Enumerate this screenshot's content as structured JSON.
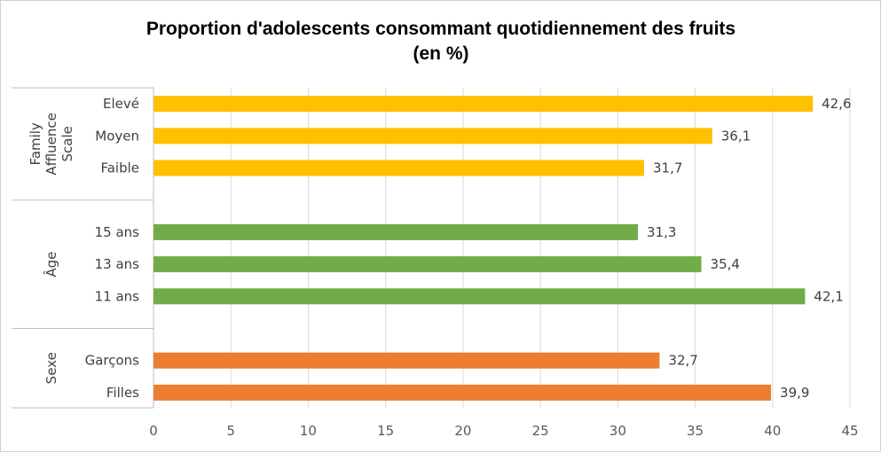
{
  "chart_data": {
    "type": "bar",
    "orientation": "horizontal",
    "title": "Proportion d'adolescents consommant quotidiennement des fruits (en %)",
    "title_lines": [
      "Proportion d'adolescents consommant quotidiennement des fruits",
      "(en %)"
    ],
    "xlabel": "",
    "ylabel": "",
    "xlim": [
      0,
      45
    ],
    "x_ticks": [
      "0",
      "5",
      "10",
      "15",
      "20",
      "25",
      "30",
      "35",
      "40",
      "45"
    ],
    "x_tick_values": [
      0,
      5,
      10,
      15,
      20,
      25,
      30,
      35,
      40,
      45
    ],
    "grid": true,
    "legend": "none",
    "groups": [
      {
        "name_lines": [
          "Family",
          "Affluence",
          "Scale"
        ],
        "color": "#FFC000",
        "categories": [
          "Elevé",
          "Moyen",
          "Faible"
        ],
        "values": [
          42.6,
          36.1,
          31.7
        ],
        "value_labels": [
          "42,6",
          "36,1",
          "31,7"
        ]
      },
      {
        "name_lines": [
          "Âge"
        ],
        "color": "#70AD47",
        "categories": [
          "15 ans",
          "13 ans",
          "11 ans"
        ],
        "values": [
          31.3,
          35.4,
          42.1
        ],
        "value_labels": [
          "31,3",
          "35,4",
          "42,1"
        ]
      },
      {
        "name_lines": [
          "Sexe"
        ],
        "color": "#ED7D31",
        "categories": [
          "Garçons",
          "Filles"
        ],
        "values": [
          32.7,
          39.9
        ],
        "value_labels": [
          "32,7",
          "39,9"
        ]
      }
    ]
  }
}
